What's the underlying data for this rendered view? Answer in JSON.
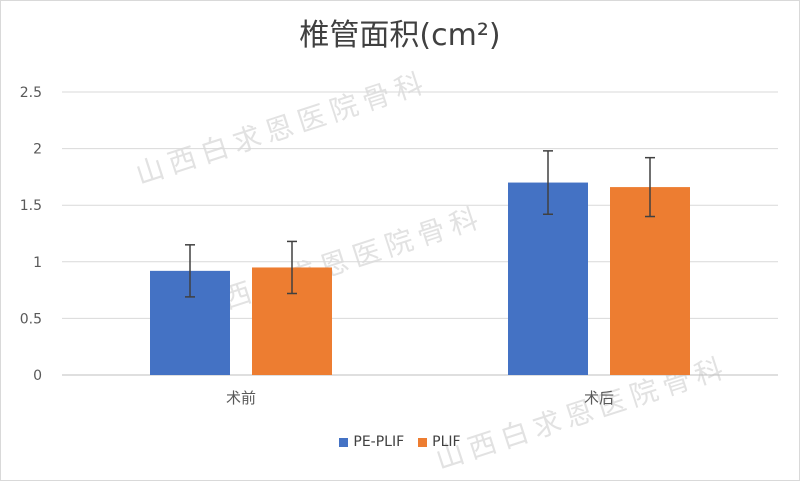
{
  "chart_data": {
    "type": "bar",
    "title": "椎管面积(cm²)",
    "categories": [
      "术前",
      "术后"
    ],
    "series": [
      {
        "name": "PE-PLIF",
        "color": "#4472c4",
        "values": [
          0.92,
          1.7
        ],
        "error": [
          0.23,
          0.28
        ]
      },
      {
        "name": "PLIF",
        "color": "#ed7d31",
        "values": [
          0.95,
          1.66
        ],
        "error": [
          0.23,
          0.26
        ]
      }
    ],
    "ylim": [
      0,
      2.5
    ],
    "yticks": [
      "0",
      "0.5",
      "1",
      "1.5",
      "2",
      "2.5"
    ],
    "ytick_values": [
      0,
      0.5,
      1,
      1.5,
      2,
      2.5
    ],
    "grid": true,
    "legend_position": "bottom"
  },
  "watermark": "山西白求恩医院骨科"
}
